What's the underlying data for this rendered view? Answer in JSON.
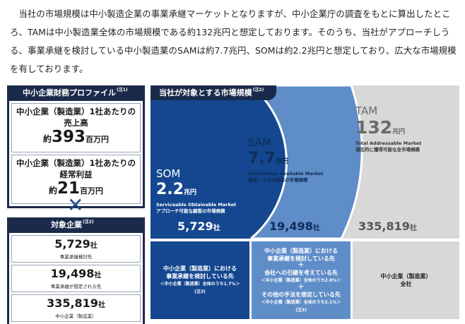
{
  "intro": "当社の市場規模は中小製造企業の事業承継マーケットとなりますが、中小企業庁の調査をもとに算出したところ、TAMは中小製造業全体の市場規模である約132兆円と想定しております。そのうち、当社がアプローチしうる、事業承継を検討している中小製造業のSAMは約7.7兆円、SOMは約2.2兆円と想定しており、広大な市場規模を有しております。",
  "profile": {
    "header": "中小企業財務プロファイル",
    "note": "(注1)",
    "cards": [
      {
        "title1": "中小企業（製造業）1社あたりの",
        "title2": "売上高",
        "prefix": "約",
        "value": "393",
        "unit": "百万円"
      },
      {
        "title1": "中小企業（製造業）1社あたりの",
        "title2": "経常利益",
        "prefix": "約",
        "value": "21",
        "unit": "百万円"
      }
    ]
  },
  "cross_symbol": "✕",
  "target": {
    "header": "対象企業",
    "note": "(注2)",
    "items": [
      {
        "value": "5,729",
        "unit": "社",
        "label": "事業承継検討先"
      },
      {
        "value": "19,498",
        "unit": "社",
        "label": "事業承継が想定される先"
      },
      {
        "value": "335,819",
        "unit": "社",
        "label": "中小企業（製造業）"
      }
    ]
  },
  "market": {
    "tag": "当社が対象とする市場規模",
    "note": "(注2)",
    "tam": {
      "name": "TAM",
      "value": "132",
      "unit": "兆円",
      "en": "Total Addressable Market",
      "jp": "潜在的に獲得可能な全市場規模",
      "count": "335,819",
      "count_unit": "社"
    },
    "sam": {
      "name": "SAM",
      "value": "7.7",
      "unit": "兆円",
      "en": "Serviceable Available Market",
      "jp": "獲得しうる全顧客の市場規模",
      "count": "19,498",
      "count_unit": "社"
    },
    "som": {
      "name": "SOM",
      "value": "2.2",
      "unit": "兆円",
      "en": "Serviceable Obtainable Market",
      "jp": "アプローチ可能な顧客の市場規模",
      "count": "5,729",
      "count_unit": "社"
    },
    "desc_som": {
      "line1": "中小企業（製造業）における",
      "line2": "事業承継を検討している先",
      "line3": "＜中小企業（製造業）全体のうち1.7%＞",
      "line4": "(注3)"
    },
    "desc_sam": {
      "line1": "中小企業（製造業）における",
      "line2": "事業承継を検討している先",
      "plus1": "＋",
      "line3": "会社への引継を考えている先",
      "line4": "＜中小企業（製造業）全体のうち2.0%＞",
      "plus2": "＋",
      "line5": "その他の手法を想定している先",
      "line6": "＜中小企業（製造業）全体のうち2.1%＞",
      "line7": "(注3)"
    },
    "desc_tam": {
      "line1": "中小企業（製造業）",
      "line2": "全社"
    }
  },
  "colors": {
    "navy": "#1b2a4a",
    "som": "#14478f",
    "sam": "#5f8dc8",
    "tam": "#d8d8d8",
    "tam_text": "#6b6b6b"
  }
}
